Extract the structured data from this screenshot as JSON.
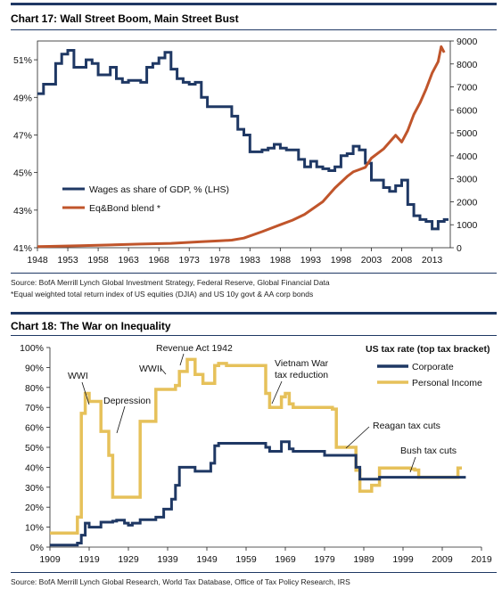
{
  "colors": {
    "navy": "#1f3864",
    "orange": "#c0552b",
    "gold": "#e6c15a"
  },
  "chart17": {
    "title": "Chart 17: Wall Street Boom, Main Street Bust",
    "source_line1": "Source: BofA Merrill Lynch Global Investment Strategy, Federal Reserve, Global Financial Data",
    "source_line2": "*Equal weighted total return index of US equities (DJIA) and US 10y govt & AA corp bonds"
  },
  "chart18": {
    "title": "Chart 18: The War on Inequality",
    "source": "Source: BofA Merrill Lynch Global Research, World Tax Database, Office of Tax Policy Research, IRS"
  },
  "chart_data": [
    {
      "type": "line",
      "title": "Chart 17: Wall Street Boom, Main Street Bust",
      "x_ticks": [
        "1948",
        "1953",
        "1958",
        "1963",
        "1968",
        "1973",
        "1978",
        "1983",
        "1988",
        "1993",
        "1998",
        "2003",
        "2008",
        "2013"
      ],
      "xlim": [
        1948,
        2016
      ],
      "y_left_ticks": [
        "41%",
        "43%",
        "45%",
        "47%",
        "49%",
        "51%"
      ],
      "ylim_left": [
        41,
        52
      ],
      "y_right_ticks": [
        "0",
        "1000",
        "2000",
        "3000",
        "4000",
        "5000",
        "6000",
        "7000",
        "8000",
        "9000"
      ],
      "ylim_right": [
        0,
        9000
      ],
      "legend_position": "lower-left",
      "series": [
        {
          "name": "Wages as share of GDP, % (LHS)",
          "axis": "left",
          "color": "#1f3864",
          "x": [
            1948,
            1949,
            1950,
            1951,
            1952,
            1953,
            1954,
            1955,
            1956,
            1957,
            1958,
            1959,
            1960,
            1961,
            1962,
            1963,
            1964,
            1965,
            1966,
            1967,
            1968,
            1969,
            1970,
            1971,
            1972,
            1973,
            1974,
            1975,
            1976,
            1977,
            1978,
            1979,
            1980,
            1981,
            1982,
            1983,
            1984,
            1985,
            1986,
            1987,
            1988,
            1989,
            1990,
            1991,
            1992,
            1993,
            1994,
            1995,
            1996,
            1997,
            1998,
            1999,
            2000,
            2001,
            2002,
            2003,
            2004,
            2005,
            2006,
            2007,
            2008,
            2009,
            2010,
            2011,
            2012,
            2013,
            2014,
            2015
          ],
          "y": [
            49.2,
            49.7,
            49.7,
            50.8,
            51.3,
            51.5,
            50.6,
            50.6,
            51.0,
            50.8,
            50.2,
            50.2,
            50.6,
            50.0,
            49.8,
            49.9,
            49.9,
            49.8,
            50.6,
            50.8,
            51.1,
            51.4,
            50.5,
            50.0,
            49.8,
            49.7,
            49.8,
            49.0,
            48.5,
            48.5,
            48.5,
            48.5,
            48.0,
            47.3,
            47.0,
            46.1,
            46.1,
            46.2,
            46.3,
            46.5,
            46.3,
            46.2,
            46.2,
            45.7,
            45.3,
            45.6,
            45.3,
            45.2,
            45.1,
            45.3,
            45.9,
            46.0,
            46.4,
            46.2,
            45.5,
            44.6,
            44.6,
            44.2,
            44.0,
            44.3,
            44.6,
            43.3,
            42.7,
            42.5,
            42.4,
            42.0,
            42.4,
            42.5
          ]
        },
        {
          "name": "Eq&Bond blend *",
          "axis": "right",
          "color": "#c0552b",
          "x": [
            1948,
            1950,
            1955,
            1960,
            1965,
            1970,
            1975,
            1978,
            1980,
            1982,
            1985,
            1988,
            1990,
            1992,
            1995,
            1997,
            1999,
            2000,
            2001,
            2002,
            2003,
            2005,
            2007,
            2008,
            2009,
            2010,
            2011,
            2012,
            2013,
            2014,
            2014.5,
            2015
          ],
          "y": [
            50,
            60,
            90,
            120,
            160,
            190,
            260,
            300,
            330,
            420,
            700,
            1000,
            1200,
            1450,
            2000,
            2600,
            3100,
            3300,
            3400,
            3500,
            3900,
            4300,
            4900,
            4600,
            5100,
            5800,
            6300,
            6900,
            7600,
            8100,
            8750,
            8500
          ]
        }
      ]
    },
    {
      "type": "line",
      "title": "Chart 18: The War on Inequality",
      "x_ticks": [
        "1909",
        "1919",
        "1929",
        "1939",
        "1949",
        "1959",
        "1969",
        "1979",
        "1989",
        "1999",
        "2009",
        "2019"
      ],
      "xlim": [
        1909,
        2019
      ],
      "y_ticks": [
        "0%",
        "10%",
        "20%",
        "30%",
        "40%",
        "50%",
        "60%",
        "70%",
        "80%",
        "90%",
        "100%"
      ],
      "ylim": [
        0,
        100
      ],
      "legend_title": "US tax rate (top tax bracket)",
      "legend_position": "top-right",
      "series": [
        {
          "name": "Corporate",
          "color": "#1f3864",
          "x": [
            1909,
            1916,
            1917,
            1918,
            1919,
            1920,
            1921,
            1922,
            1925,
            1926,
            1928,
            1929,
            1930,
            1932,
            1934,
            1936,
            1937,
            1938,
            1940,
            1941,
            1942,
            1946,
            1950,
            1951,
            1952,
            1964,
            1965,
            1968,
            1970,
            1971,
            1979,
            1987,
            1988,
            1993,
            2014
          ],
          "y": [
            1,
            2,
            6,
            12,
            10,
            10,
            10,
            12.5,
            13,
            13.5,
            12,
            11,
            12,
            13.75,
            13.75,
            15,
            15,
            19,
            24,
            31,
            40,
            38,
            42,
            50.75,
            52,
            50,
            48,
            52.8,
            49.2,
            48,
            46,
            40,
            34,
            35,
            35
          ]
        },
        {
          "name": "Personal Income",
          "color": "#e6c15a",
          "x": [
            1909,
            1913,
            1915,
            1916,
            1917,
            1918,
            1919,
            1920,
            1921,
            1922,
            1924,
            1925,
            1930,
            1932,
            1936,
            1941,
            1942,
            1944,
            1946,
            1948,
            1951,
            1952,
            1954,
            1964,
            1965,
            1968,
            1969,
            1970,
            1971,
            1981,
            1982,
            1987,
            1988,
            1991,
            1993,
            2001,
            2002,
            2003,
            2012,
            2013
          ],
          "y": [
            7,
            7,
            7,
            15,
            67,
            77,
            73,
            73,
            73,
            58,
            46,
            25,
            25,
            63,
            79,
            81,
            88,
            94,
            86.5,
            82,
            91,
            92,
            91,
            77,
            70,
            75.25,
            77,
            71.75,
            70,
            69.13,
            50,
            38.5,
            28,
            31,
            39.6,
            39.1,
            38.6,
            35,
            35,
            39.6
          ]
        }
      ],
      "annotations": [
        "WWI",
        "Depression",
        "WWII",
        "Revenue Act 1942",
        "Vietnam War tax reduction",
        "Reagan tax cuts",
        "Bush tax cuts"
      ]
    }
  ],
  "labels18": {
    "wwi": "WWI",
    "depression": "Depression",
    "wwii": "WWII",
    "revenue_act": "Revenue Act 1942",
    "vietnam_1": "Vietnam War",
    "vietnam_2": "tax reduction",
    "reagan": "Reagan tax cuts",
    "bush": "Bush tax cuts"
  }
}
